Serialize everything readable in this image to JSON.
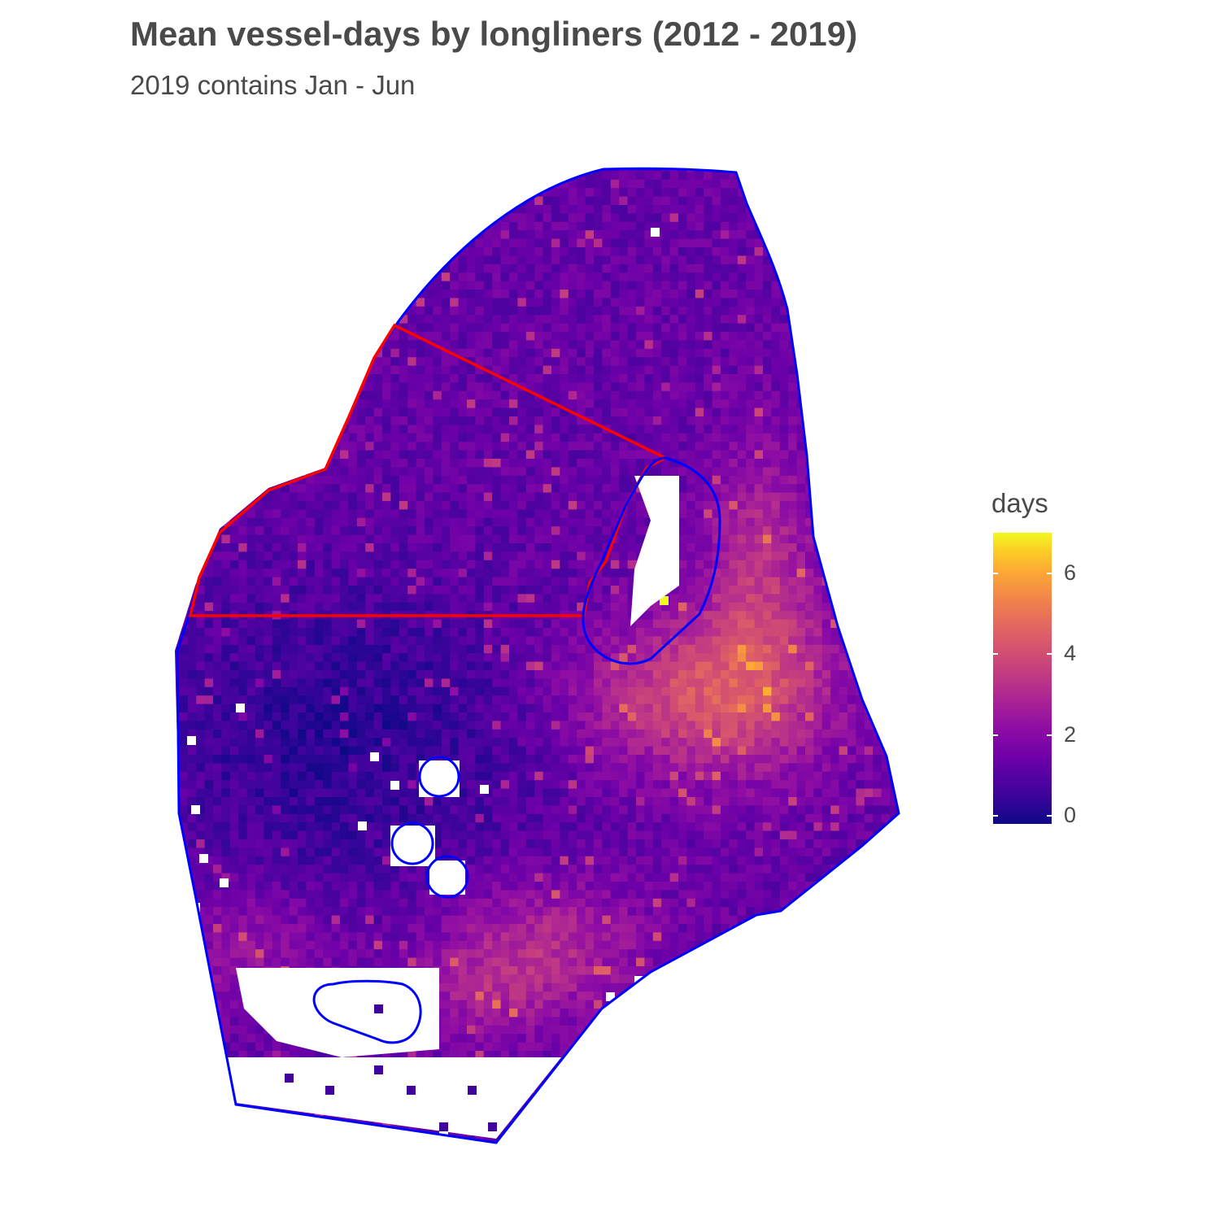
{
  "title": "Mean vessel-days by longliners (2012 - 2019)",
  "subtitle": "2019 contains Jan - Jun",
  "legend": {
    "title": "days",
    "ticks": [
      {
        "value": 0,
        "label": "0"
      },
      {
        "value": 2,
        "label": "2"
      },
      {
        "value": 4,
        "label": "4"
      },
      {
        "value": 6,
        "label": "6"
      }
    ],
    "range": [
      0,
      7
    ],
    "colormap": "plasma"
  },
  "map": {
    "layers": [
      {
        "name": "fishing-area-boundary",
        "color": "#0000ff"
      },
      {
        "name": "northwest-zone-boundary",
        "color": "#ff0000"
      },
      {
        "name": "closed-area-circles",
        "color": "#0000ff"
      }
    ]
  }
}
